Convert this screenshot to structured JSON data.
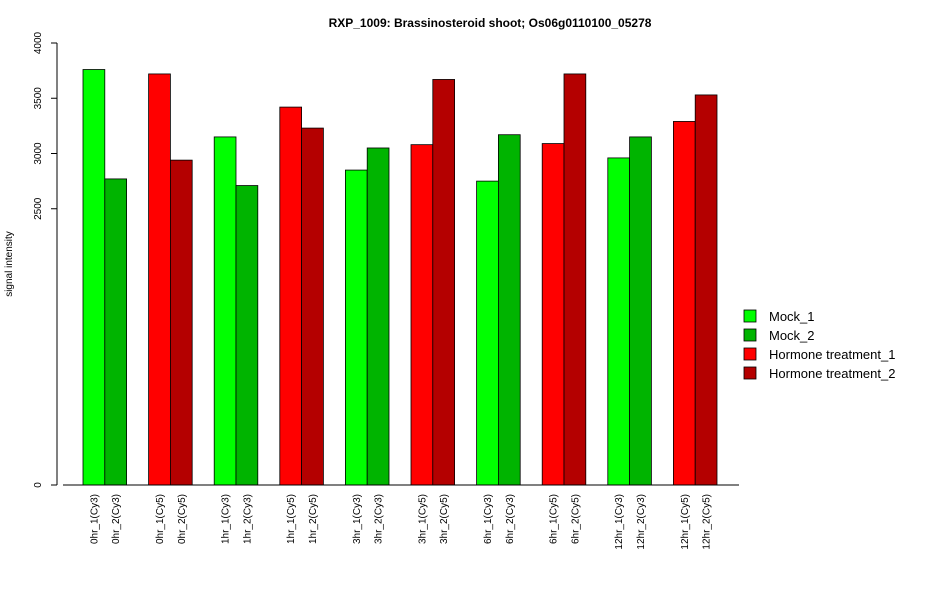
{
  "chart_data": {
    "type": "bar",
    "title": "RXP_1009: Brassinosteroid shoot; Os06g0110100_05278",
    "xlabel": "",
    "ylabel": "signal intensity",
    "ylim": [
      0,
      4000
    ],
    "yticks": [
      0,
      2500,
      3000,
      3500,
      4000
    ],
    "categories": [
      "0hr_1(Cy3)",
      "0hr_2(Cy3)",
      "0hr_1(Cy5)",
      "0hr_2(Cy5)",
      "1hr_1(Cy3)",
      "1hr_2(Cy3)",
      "1hr_1(Cy5)",
      "1hr_2(Cy5)",
      "3hr_1(Cy3)",
      "3hr_2(Cy3)",
      "3hr_1(Cy5)",
      "3hr_2(Cy5)",
      "6hr_1(Cy3)",
      "6hr_2(Cy3)",
      "6hr_1(Cy5)",
      "6hr_2(Cy5)",
      "12hr_1(Cy3)",
      "12hr_2(Cy3)",
      "12hr_1(Cy5)",
      "12hr_2(Cy5)"
    ],
    "values": [
      3760,
      2770,
      3720,
      2940,
      3150,
      2710,
      3420,
      3230,
      2850,
      3050,
      3080,
      3670,
      2750,
      3170,
      3090,
      3720,
      2960,
      3150,
      3290,
      3530
    ],
    "bar_series": [
      0,
      1,
      2,
      3,
      0,
      1,
      2,
      3,
      0,
      1,
      2,
      3,
      0,
      1,
      2,
      3,
      0,
      1,
      2,
      3
    ],
    "series": [
      {
        "name": "Mock_1",
        "color": "#00ff00"
      },
      {
        "name": "Mock_2",
        "color": "#00b400"
      },
      {
        "name": "Hormone treatment_1",
        "color": "#ff0000"
      },
      {
        "name": "Hormone treatment_2",
        "color": "#b40000"
      }
    ],
    "legend_position": "right",
    "grid": false
  }
}
